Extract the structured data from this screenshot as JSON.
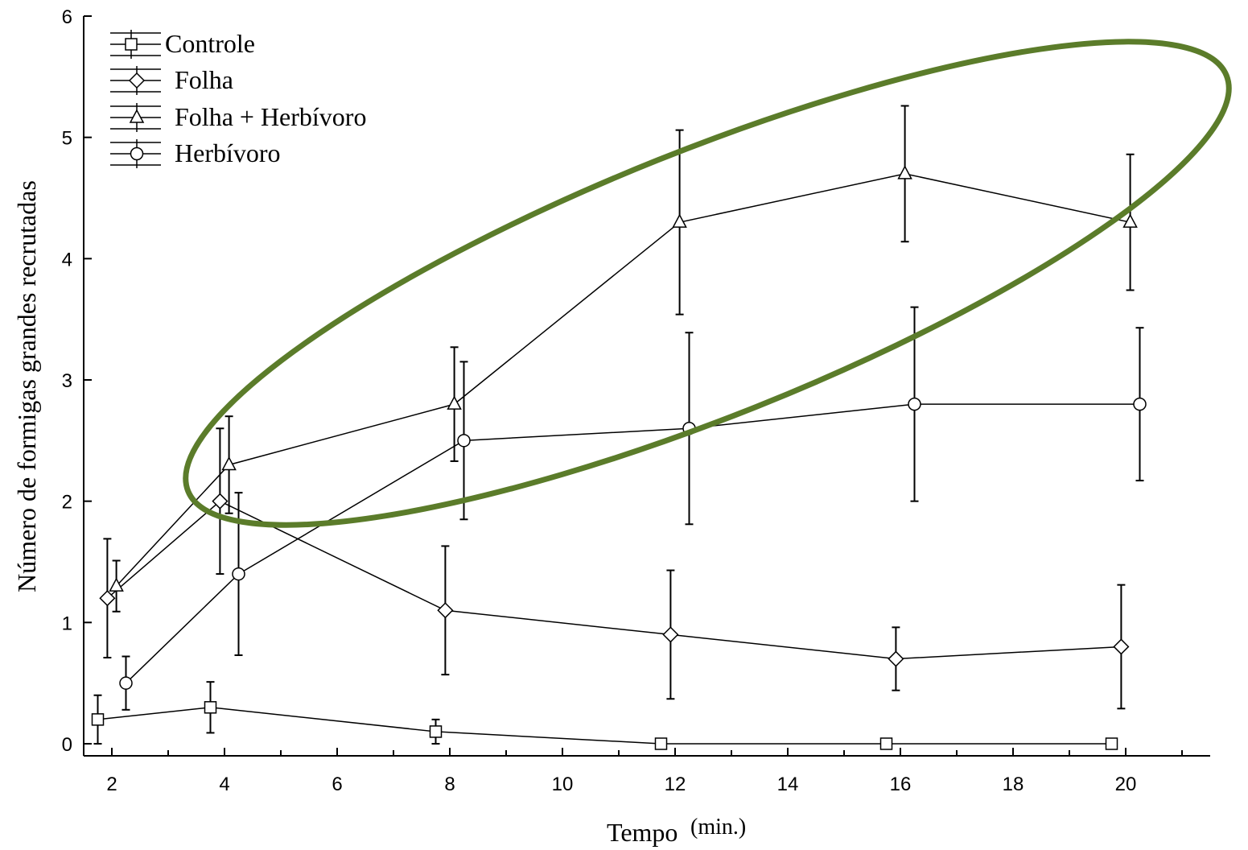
{
  "chart_data": {
    "type": "line",
    "xlabel": "Tempo",
    "xlabel_unit": "(min.)",
    "ylabel": "Número de formigas grandes recrutadas",
    "xlim": [
      1.5,
      21.5
    ],
    "ylim": [
      0,
      6
    ],
    "x_ticks": [
      "2",
      "4",
      "6",
      "8",
      "10",
      "12",
      "14",
      "16",
      "18",
      "20"
    ],
    "y_ticks": [
      "0",
      "1",
      "2",
      "3",
      "4",
      "5",
      "6"
    ],
    "grid": false,
    "legend_position": "top-left",
    "series": [
      {
        "name": "Controle",
        "marker": "square",
        "x": [
          1.75,
          3.75,
          7.75,
          11.75,
          15.75,
          19.75
        ],
        "y": [
          0.2,
          0.3,
          0.1,
          0,
          0,
          0
        ],
        "err": [
          0.2,
          0.21,
          0.1,
          0,
          0,
          0
        ]
      },
      {
        "name": "Folha",
        "marker": "diamond",
        "x": [
          1.92,
          3.92,
          7.92,
          11.92,
          15.92,
          19.92
        ],
        "y": [
          1.2,
          2.0,
          1.1,
          0.9,
          0.7,
          0.8
        ],
        "err": [
          0.49,
          0.6,
          0.53,
          0.53,
          0.26,
          0.51
        ]
      },
      {
        "name": "Folha + Herbívoro",
        "marker": "triangle",
        "x": [
          2.08,
          4.08,
          8.08,
          12.08,
          16.08,
          20.08
        ],
        "y": [
          1.3,
          2.3,
          2.8,
          4.3,
          4.7,
          4.3
        ],
        "err": [
          0.21,
          0.4,
          0.47,
          0.76,
          0.56,
          0.56
        ]
      },
      {
        "name": "Herbívoro",
        "marker": "circle",
        "x": [
          2.25,
          4.25,
          8.25,
          12.25,
          16.25,
          20.25
        ],
        "y": [
          0.5,
          1.4,
          2.5,
          2.6,
          2.8,
          2.8
        ],
        "err": [
          0.22,
          0.67,
          0.65,
          0.79,
          0.8,
          0.63
        ]
      }
    ],
    "annotation": {
      "shape": "ellipse",
      "color": "#5b7c2a",
      "highlights": "Folha + Herbívoro"
    }
  }
}
